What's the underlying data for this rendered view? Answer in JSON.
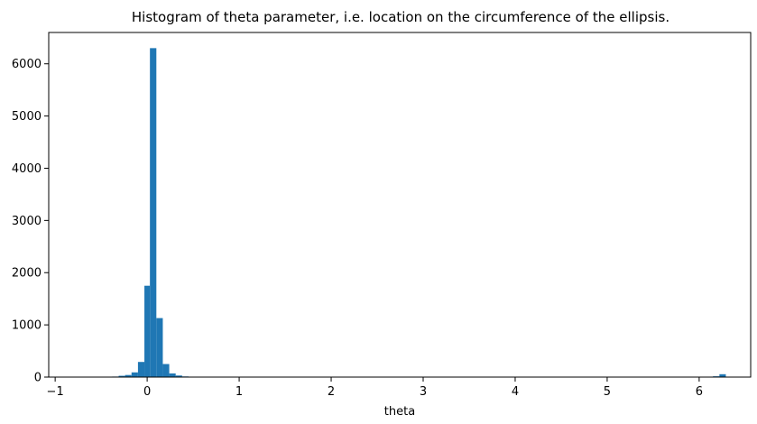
{
  "chart_data": {
    "type": "bar",
    "title": "Histogram of theta parameter, i.e. location on the circumference of the ellipsis.",
    "xlabel": "theta",
    "ylabel": "",
    "xlim": [
      -1.07,
      6.56
    ],
    "ylim": [
      0,
      6600
    ],
    "xticks": [
      -1,
      0,
      1,
      2,
      3,
      4,
      5,
      6
    ],
    "yticks": [
      0,
      1000,
      2000,
      3000,
      4000,
      5000,
      6000
    ],
    "grid": false,
    "legend": "none",
    "bar_color": "#1f77b4",
    "bins": [
      {
        "x0": -0.52,
        "x1": -0.45,
        "count": 8
      },
      {
        "x0": -0.45,
        "x1": -0.38,
        "count": 3
      },
      {
        "x0": -0.38,
        "x1": -0.31,
        "count": 10
      },
      {
        "x0": -0.31,
        "x1": -0.24,
        "count": 25
      },
      {
        "x0": -0.24,
        "x1": -0.17,
        "count": 40
      },
      {
        "x0": -0.17,
        "x1": -0.1,
        "count": 90
      },
      {
        "x0": -0.1,
        "x1": -0.03,
        "count": 290
      },
      {
        "x0": -0.03,
        "x1": 0.03,
        "count": 1750
      },
      {
        "x0": 0.03,
        "x1": 0.1,
        "count": 6300
      },
      {
        "x0": 0.1,
        "x1": 0.17,
        "count": 1130
      },
      {
        "x0": 0.17,
        "x1": 0.24,
        "count": 250
      },
      {
        "x0": 0.24,
        "x1": 0.31,
        "count": 70
      },
      {
        "x0": 0.31,
        "x1": 0.38,
        "count": 30
      },
      {
        "x0": 0.38,
        "x1": 0.45,
        "count": 12
      },
      {
        "x0": 6.08,
        "x1": 6.15,
        "count": 5
      },
      {
        "x0": 6.15,
        "x1": 6.22,
        "count": 15
      },
      {
        "x0": 6.22,
        "x1": 6.29,
        "count": 55
      }
    ]
  }
}
